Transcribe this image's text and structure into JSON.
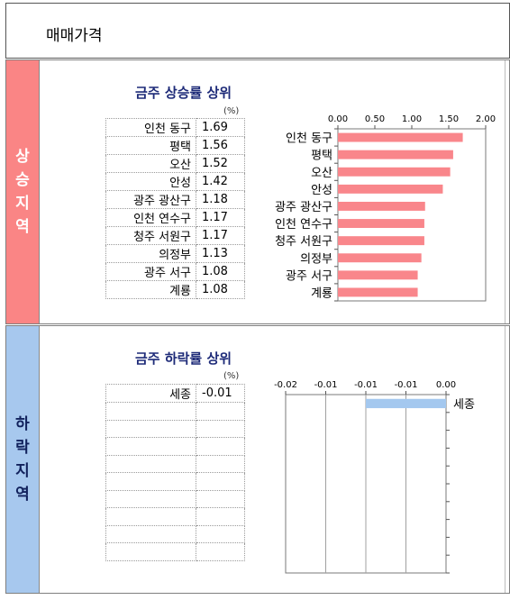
{
  "header": {
    "title": "매매가격"
  },
  "rise": {
    "side_label": "상승지역",
    "title": "금주 상승률 상위",
    "unit": "(%)",
    "rows": [
      {
        "name": "인천 동구",
        "value": "1.69"
      },
      {
        "name": "평택",
        "value": "1.56"
      },
      {
        "name": "오산",
        "value": "1.52"
      },
      {
        "name": "안성",
        "value": "1.42"
      },
      {
        "name": "광주 광산구",
        "value": "1.18"
      },
      {
        "name": "인천 연수구",
        "value": "1.17"
      },
      {
        "name": "청주 서원구",
        "value": "1.17"
      },
      {
        "name": "의정부",
        "value": "1.13"
      },
      {
        "name": "광주 서구",
        "value": "1.08"
      },
      {
        "name": "계룡",
        "value": "1.08"
      }
    ]
  },
  "fall": {
    "side_label": "하락지역",
    "title": "금주 하락률 상위",
    "unit": "(%)",
    "rows": [
      {
        "name": "세종",
        "value": "-0.01"
      },
      {
        "name": "",
        "value": ""
      },
      {
        "name": "",
        "value": ""
      },
      {
        "name": "",
        "value": ""
      },
      {
        "name": "",
        "value": ""
      },
      {
        "name": "",
        "value": ""
      },
      {
        "name": "",
        "value": ""
      },
      {
        "name": "",
        "value": ""
      },
      {
        "name": "",
        "value": ""
      },
      {
        "name": "",
        "value": ""
      }
    ]
  },
  "chart_data": [
    {
      "type": "bar",
      "orientation": "horizontal",
      "title": "",
      "categories": [
        "인천 동구",
        "평택",
        "오산",
        "안성",
        "광주 광산구",
        "인천 연수구",
        "청주 서원구",
        "의정부",
        "광주 서구",
        "계룡"
      ],
      "values": [
        1.69,
        1.56,
        1.52,
        1.42,
        1.18,
        1.17,
        1.17,
        1.13,
        1.08,
        1.08
      ],
      "xlim": [
        0,
        2
      ],
      "xticks": [
        "0.00",
        "0.50",
        "1.00",
        "1.50",
        "2.00"
      ],
      "xticks_values": [
        0,
        0.5,
        1,
        1.5,
        2
      ],
      "axis_position": "top",
      "grid": false,
      "bar_color": "#f9868b"
    },
    {
      "type": "bar",
      "orientation": "horizontal",
      "title": "",
      "categories": [
        "세종"
      ],
      "values": [
        -0.01
      ],
      "xlim": [
        -0.02,
        0
      ],
      "xticks": [
        "-0.02",
        "-0.01",
        "-0.01",
        "-0.01",
        "0.00"
      ],
      "xticks_values": [
        -0.02,
        -0.015,
        -0.01,
        -0.005,
        0
      ],
      "axis_position": "top",
      "grid": true,
      "bar_color": "#a4c8ef"
    }
  ]
}
